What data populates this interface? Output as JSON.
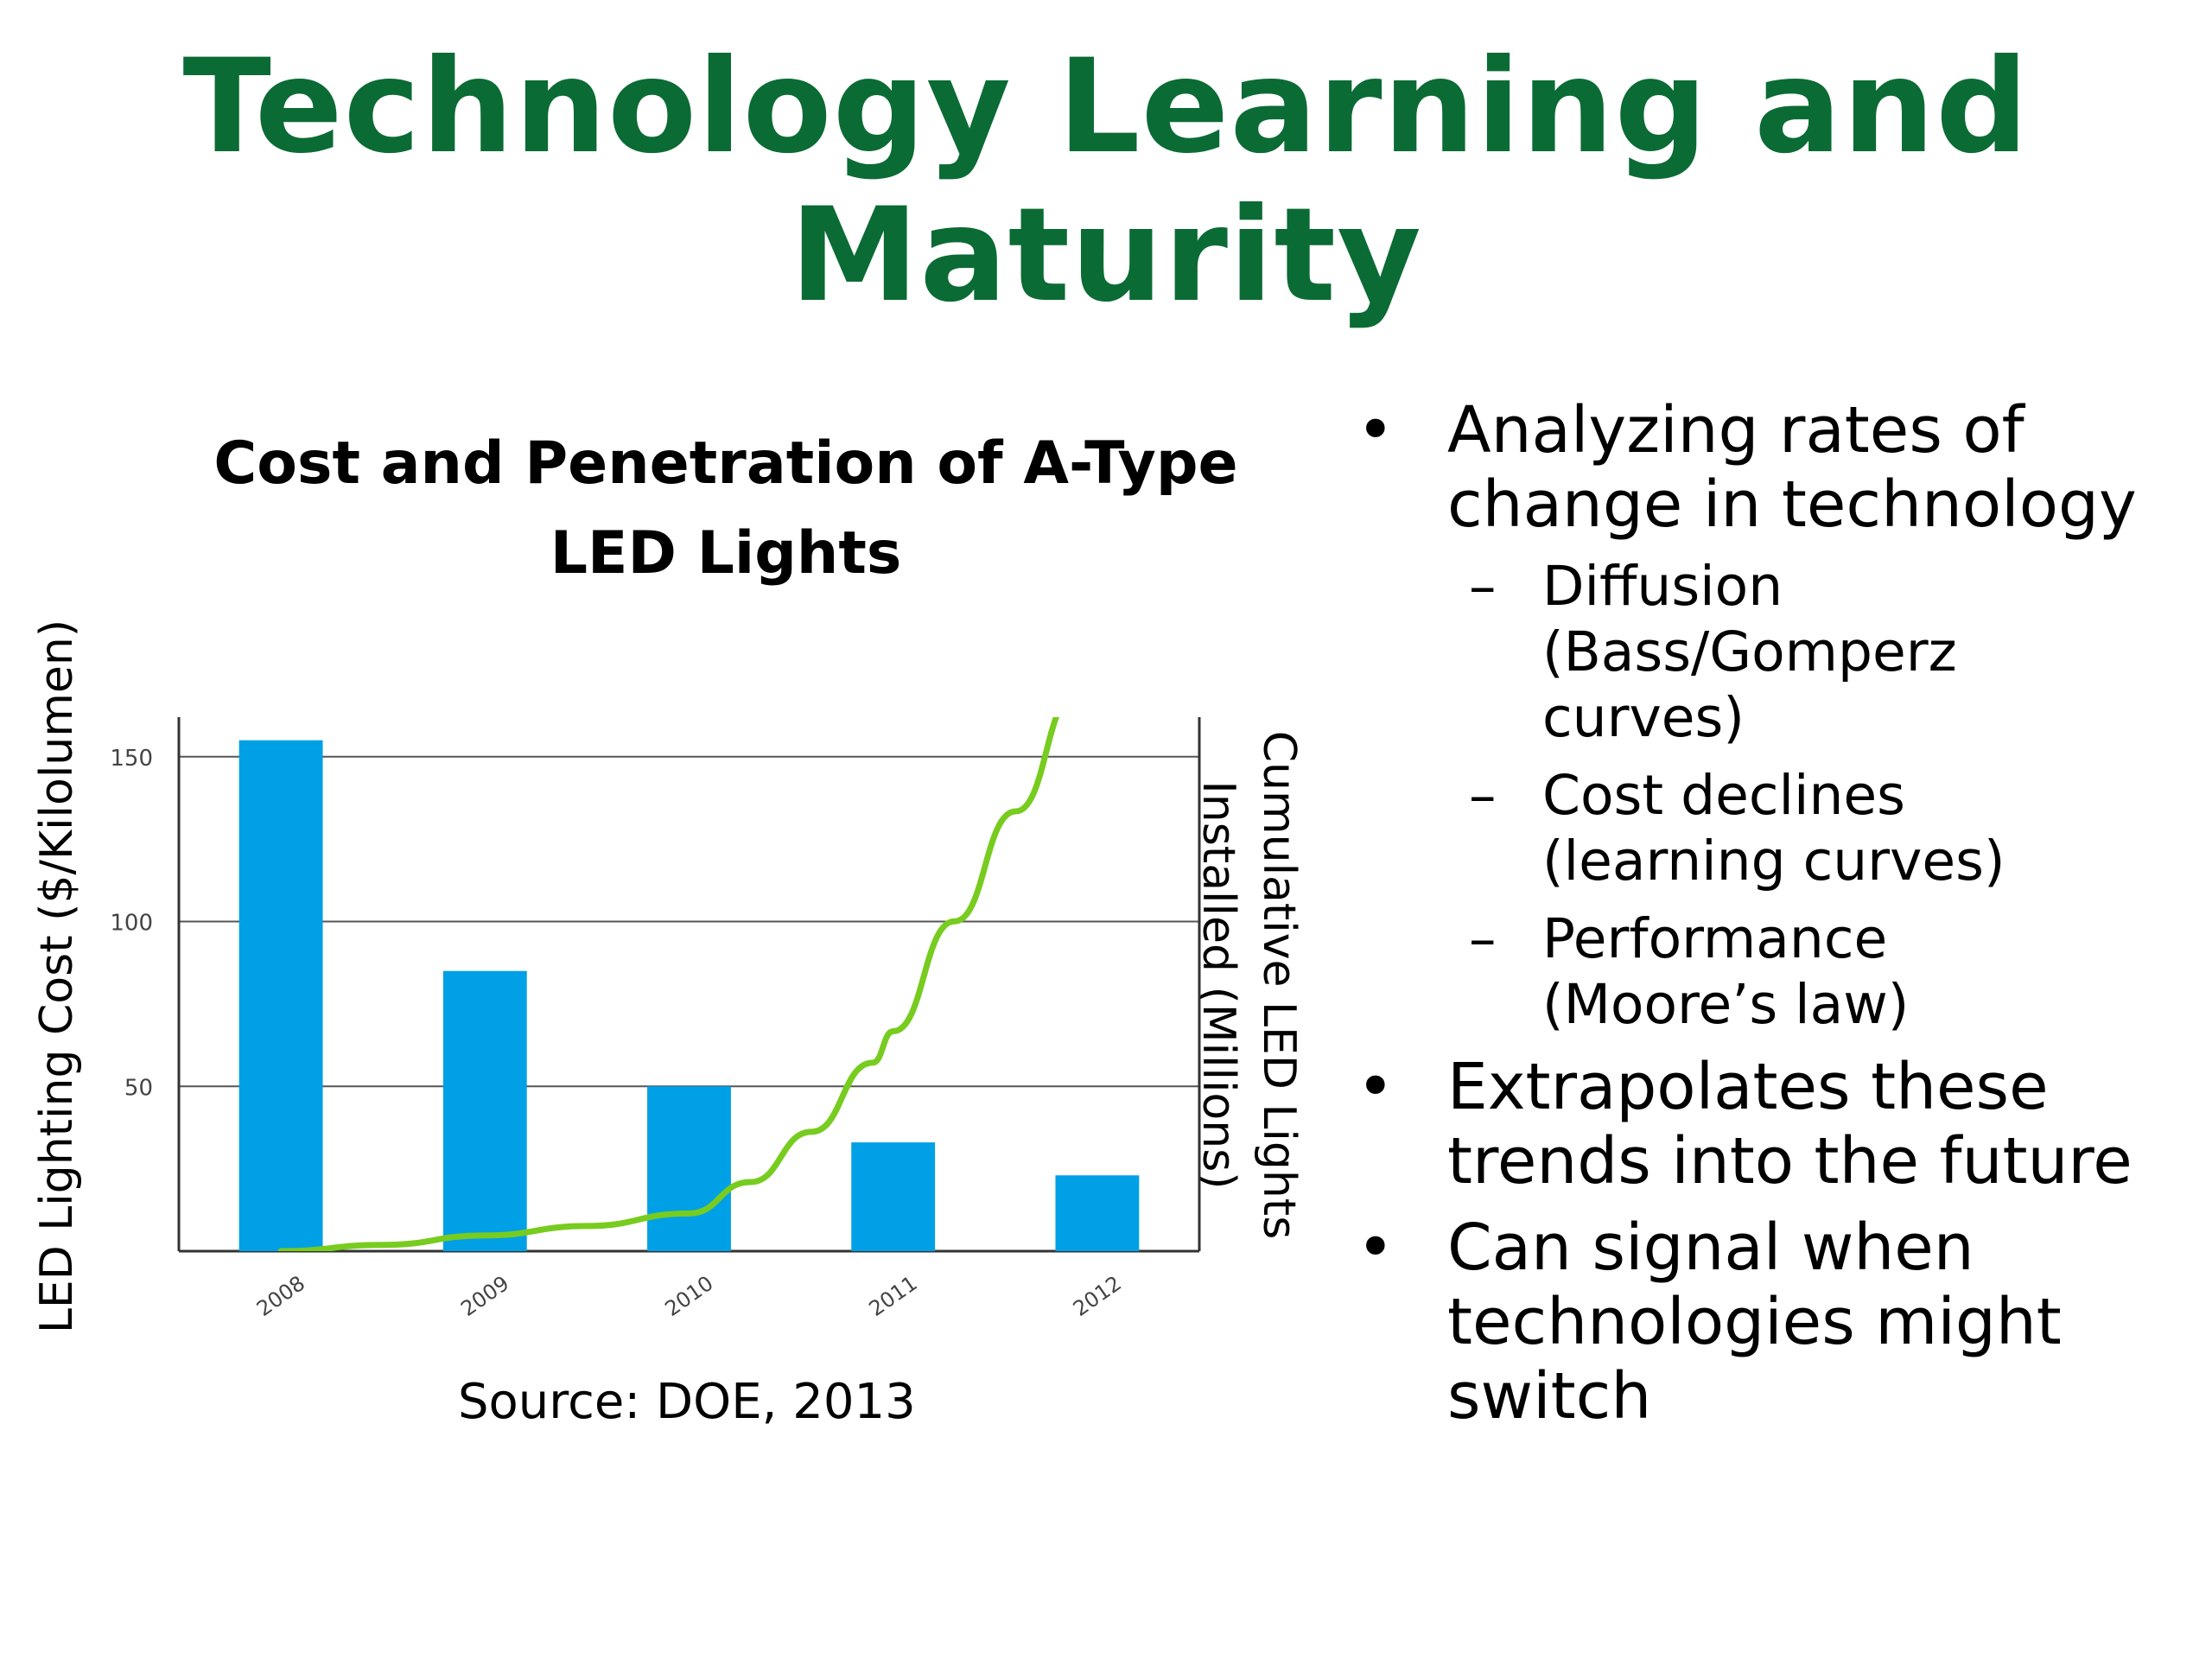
{
  "slide": {
    "title_lines": [
      "Technology Learning and",
      "Maturity"
    ],
    "source": "Source: DOE, 2013"
  },
  "bullets": {
    "b1_lines": [
      "Analyzing rates of",
      "change in technology"
    ],
    "sub1_lines": [
      "Diffusion",
      "(Bass/Gomperz",
      "curves)"
    ],
    "sub2_lines": [
      "Cost declines",
      "(learning curves)"
    ],
    "sub3_lines": [
      "Performance",
      "(Moore’s law)"
    ],
    "b2_lines": [
      "Extrapolates these",
      "trends into the future"
    ],
    "b3_lines": [
      "Can signal when",
      "technologies might",
      "switch"
    ],
    "bullet_glyph": "•",
    "dash_glyph": "–"
  },
  "colors": {
    "title_green": "#0b6b35",
    "bar_blue": "#00a0e6",
    "line_green": "#77cc1f",
    "grid": "#555555"
  },
  "chart_data": {
    "type": "bar",
    "title_lines": [
      "Cost and Penetration of A-Type",
      "LED Lights"
    ],
    "categories": [
      "2008",
      "2009",
      "2010",
      "2011",
      "2012"
    ],
    "ylabel": "LED Lighting Cost ($/Kilolumen)",
    "ylabel_right_lines": [
      "Cumulative LED Lights",
      "Installed (Millions)"
    ],
    "ylim": [
      0,
      162
    ],
    "yticks": [
      50,
      100,
      150
    ],
    "grid": true,
    "series": [
      {
        "name": "LED Lighting Cost ($/Kilolumen)",
        "type": "bar",
        "axis": "left",
        "values": [
          155,
          85,
          50,
          33,
          23
        ]
      },
      {
        "name": "Cumulative LED Lights Installed (Millions)",
        "type": "line",
        "axis": "right",
        "note_unreadable_right_ticks": true,
        "x": [
          2008,
          2008.5,
          2009,
          2009.5,
          2010,
          2010.3,
          2010.6,
          2010.9,
          2011,
          2011.3,
          2011.6,
          2011.9,
          2012.0
        ],
        "values": [
          0,
          2,
          5,
          8,
          12,
          22,
          38,
          60,
          70,
          105,
          140,
          178,
          195
        ]
      }
    ]
  }
}
